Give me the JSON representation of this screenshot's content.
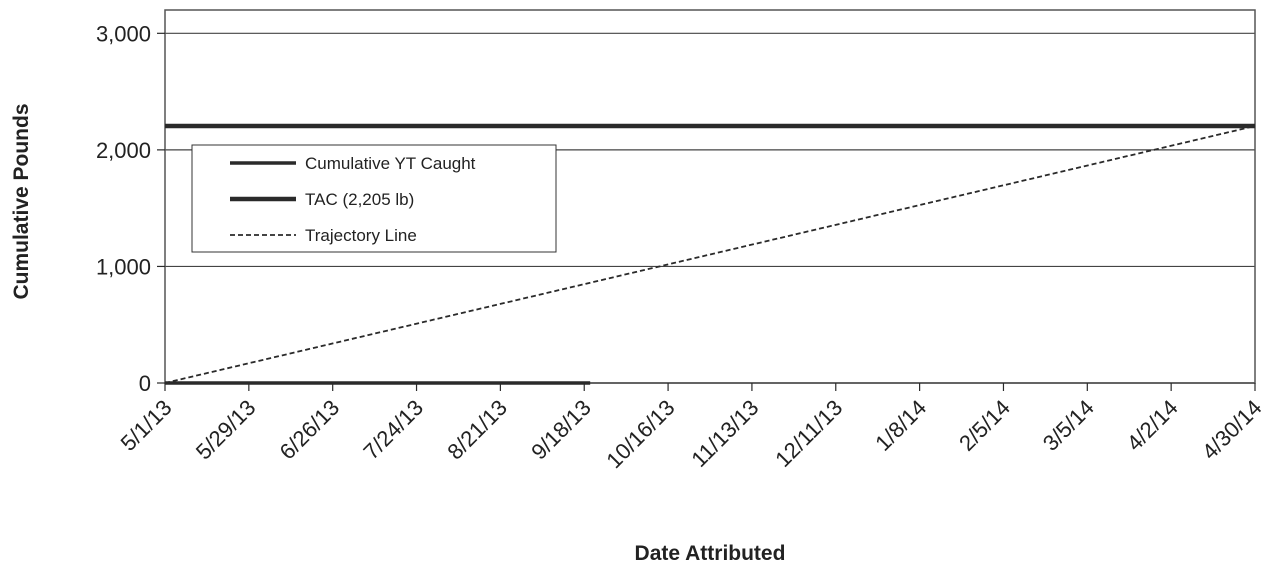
{
  "chart_data": {
    "type": "line",
    "title": "",
    "xlabel": "Date Attributed",
    "ylabel": "Cumulative Pounds",
    "x_tick_labels": [
      "5/1/13",
      "5/29/13",
      "6/26/13",
      "7/24/13",
      "8/21/13",
      "9/18/13",
      "10/16/13",
      "11/13/13",
      "12/11/13",
      "1/8/14",
      "2/5/14",
      "3/5/14",
      "4/2/14",
      "4/30/14"
    ],
    "y_tick_labels": [
      "0",
      "1,000",
      "2,000",
      "3,000"
    ],
    "y_ticks": [
      0,
      1000,
      2000,
      3000
    ],
    "xlim": [
      "2013-05-01",
      "2014-04-30"
    ],
    "ylim": [
      0,
      3200
    ],
    "grid": "horizontal",
    "legend_position": "upper-left",
    "series": [
      {
        "name": "Cumulative YT Caught",
        "style": "solid",
        "x": [
          "2013-05-01",
          "2013-09-20"
        ],
        "y": [
          0,
          0
        ]
      },
      {
        "name": "TAC (2,205 lb)",
        "style": "solid-thick",
        "x": [
          "2013-05-01",
          "2014-04-30"
        ],
        "y": [
          2205,
          2205
        ]
      },
      {
        "name": "Trajectory Line",
        "style": "dashed",
        "x": [
          "2013-05-01",
          "2014-04-30"
        ],
        "y": [
          0,
          2205
        ]
      }
    ],
    "colors": {
      "line": "#2a2a2a",
      "grid": "#444444",
      "frame": "#555555"
    }
  }
}
